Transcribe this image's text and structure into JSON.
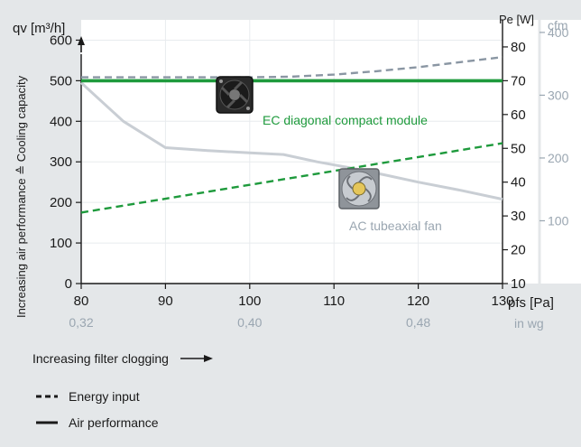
{
  "chart_data": {
    "type": "line",
    "x_axis": {
      "label": "pfs [Pa]",
      "ticks": [
        80,
        90,
        100,
        110,
        120,
        130
      ],
      "range": [
        80,
        130
      ],
      "secondary_label": "in wg",
      "secondary_ticks": [
        {
          "x": 80,
          "label": "0,32"
        },
        {
          "x": 100,
          "label": "0,40"
        },
        {
          "x": 120,
          "label": "0,48"
        }
      ]
    },
    "y_axis_left": {
      "label": "qv [m³/h]",
      "ticks": [
        0,
        100,
        200,
        300,
        400,
        500,
        600
      ],
      "range": [
        0,
        650
      ],
      "description": "Increasing air performance ≙ Cooling capacity"
    },
    "y_axis_right": {
      "label": "Pe [W]",
      "ticks": [
        10,
        20,
        30,
        40,
        50,
        60,
        70,
        80
      ],
      "range": [
        10,
        88
      ]
    },
    "y_axis_cfm": {
      "label": "cfm",
      "ticks": [
        100,
        200,
        300,
        400
      ],
      "range": [
        0,
        420
      ]
    },
    "series": [
      {
        "name": "EC diagonal compact module",
        "kind": "Air performance",
        "axis": "left",
        "color": "#1e9a3c",
        "dashed": false,
        "x": [
          80,
          130
        ],
        "y": [
          500,
          500
        ]
      },
      {
        "name": "EC diagonal compact module",
        "kind": "Energy input",
        "axis": "right",
        "color": "#1e9a3c",
        "dashed": true,
        "x": [
          80,
          130
        ],
        "y": [
          31,
          51.5
        ]
      },
      {
        "name": "AC tubeaxial fan",
        "kind": "Air performance",
        "axis": "left",
        "color": "#c9ced4",
        "dashed": false,
        "x": [
          80,
          85,
          90,
          95,
          100,
          104,
          108,
          112,
          116,
          120,
          125,
          130
        ],
        "y": [
          495,
          400,
          335,
          328,
          322,
          318,
          300,
          285,
          268,
          250,
          230,
          208
        ]
      },
      {
        "name": "AC tubeaxial fan",
        "kind": "Energy input",
        "axis": "right",
        "color": "#8a96a3",
        "dashed": true,
        "x": [
          80,
          90,
          100,
          105,
          110,
          115,
          120,
          125,
          130
        ],
        "y": [
          71,
          71,
          71,
          71.2,
          71.8,
          72.8,
          74.0,
          75.5,
          77
        ]
      }
    ],
    "annotations": [
      {
        "text": "EC diagonal compact module",
        "color": "#1e9a3c"
      },
      {
        "text": "AC tubeaxial fan",
        "color": "#9aa6b1"
      }
    ],
    "below_caption": "Increasing filter clogging",
    "legend": [
      {
        "style": "dashed",
        "label": "Energy input"
      },
      {
        "style": "solid",
        "label": "Air performance"
      }
    ]
  }
}
